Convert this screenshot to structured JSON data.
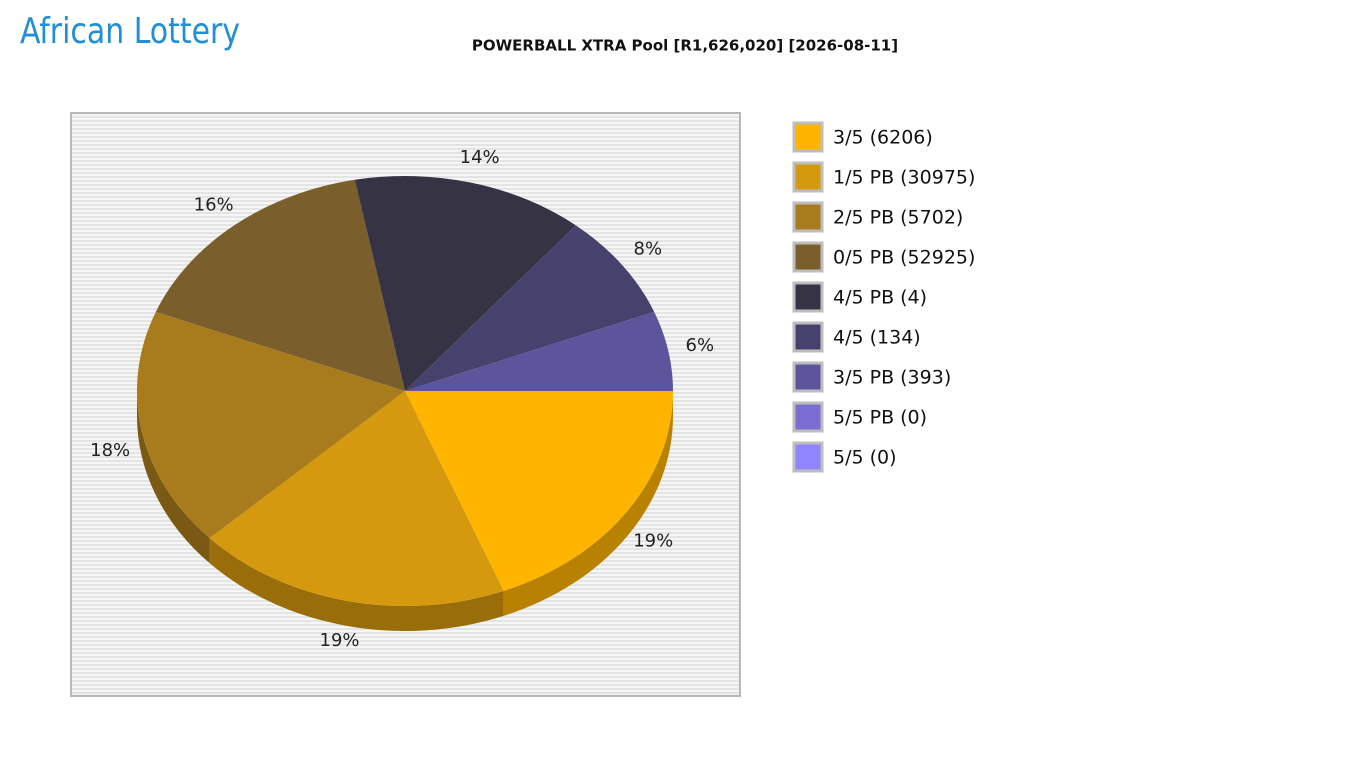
{
  "logo": "African Lottery",
  "chart_data": {
    "type": "pie",
    "title": "POWERBALL XTRA Pool [R1,626,020] [2026-08-11]",
    "categories": [
      "3/5 (6206)",
      "1/5 PB (30975)",
      "2/5 PB (5702)",
      "0/5 PB (52925)",
      "4/5 PB (4)",
      "4/5 (134)",
      "3/5 PB (393)",
      "5/5 PB (0)",
      "5/5 (0)"
    ],
    "values": [
      19,
      19,
      18,
      16,
      14,
      8,
      6,
      0,
      0
    ],
    "value_labels": [
      "19%",
      "19%",
      "18%",
      "16%",
      "14%",
      "8%",
      "6%",
      null,
      null
    ],
    "colors": [
      "#ffb400",
      "#d4990e",
      "#a87c1c",
      "#7a5e2c",
      "#363345",
      "#47416e",
      "#5d559b",
      "#7b6ed2",
      "#9185ff"
    ]
  }
}
